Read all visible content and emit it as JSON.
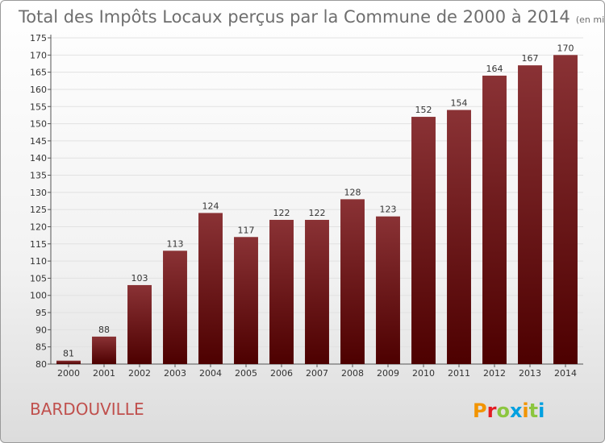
{
  "chart_data": {
    "type": "bar",
    "title": "Total des Impôts Locaux perçus par la Commune de 2000 à 2014",
    "unit": "(en milliers d'€)",
    "categories": [
      "2000",
      "2001",
      "2002",
      "2003",
      "2004",
      "2005",
      "2006",
      "2007",
      "2008",
      "2009",
      "2010",
      "2011",
      "2012",
      "2013",
      "2014"
    ],
    "values": [
      81,
      88,
      103,
      113,
      124,
      117,
      122,
      122,
      128,
      123,
      152,
      154,
      164,
      167,
      170
    ],
    "ylim": [
      80,
      175
    ],
    "ytick_step": 5,
    "xlabel": "",
    "ylabel": "",
    "grid": true,
    "bar_color_top": "#8a3235",
    "bar_color_bottom": "#4d0000"
  },
  "commune": "BARDOUVILLE",
  "logo_text": "Proxiti",
  "colors": {
    "logo": [
      "#f29400",
      "#e31b23",
      "#8cc63f",
      "#00a0e0",
      "#f29400",
      "#8cc63f",
      "#00a0e0"
    ]
  }
}
